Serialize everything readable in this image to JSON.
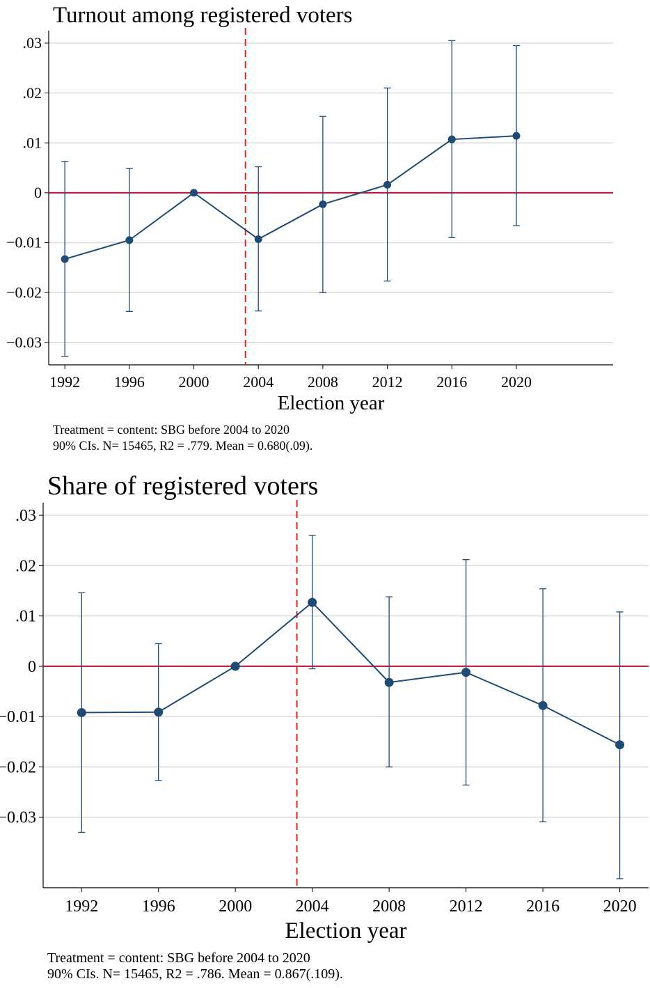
{
  "chart_data": [
    {
      "type": "line",
      "title": "Turnout among registered voters",
      "xlabel": "Election year",
      "ylabel": "",
      "x": [
        1992,
        1996,
        2000,
        2004,
        2008,
        2012,
        2016,
        2020
      ],
      "x_tick_labels": [
        "1992",
        "1996",
        "2000",
        "2004",
        "2008",
        "2012",
        "2016",
        "2020"
      ],
      "y_ticks": [
        -0.03,
        -0.02,
        -0.01,
        0,
        0.01,
        0.02,
        0.03
      ],
      "y_tick_labels": [
        "−0.03",
        "−0.02",
        "−0.01",
        "0",
        ".01",
        ".02",
        ".03"
      ],
      "ylim": [
        -0.0345,
        0.0325
      ],
      "xlim": [
        1991.0,
        2026.0
      ],
      "grid": true,
      "reference_line_y": 0,
      "treatment_line_x": 2003.2,
      "series": [
        {
          "values": [
            -0.0133,
            -0.0095,
            0.0,
            -0.0093,
            -0.0023,
            0.0016,
            0.0107,
            0.0114
          ],
          "ci_low": [
            -0.0328,
            -0.0238,
            0.0,
            -0.0237,
            -0.02,
            -0.0177,
            -0.009,
            -0.0066
          ],
          "ci_high": [
            0.0063,
            0.0049,
            0.0,
            0.0052,
            0.0153,
            0.021,
            0.0305,
            0.0295
          ]
        }
      ],
      "notes": [
        "Treatment = content: SBG before 2004 to 2020",
        "90% CIs. N= 15465, R2 = .779. Mean = 0.680(.09)."
      ],
      "colors": {
        "series": "#1f4a73",
        "zero_line": "#b5123a",
        "treatment_line": "#e8211d",
        "grid": "#d9d9d9"
      }
    },
    {
      "type": "line",
      "title": "Share of registered voters",
      "xlabel": "Election year",
      "ylabel": "",
      "x": [
        1992,
        1996,
        2000,
        2004,
        2008,
        2012,
        2016,
        2020
      ],
      "x_tick_labels": [
        "1992",
        "1996",
        "2000",
        "2004",
        "2008",
        "2012",
        "2016",
        "2020"
      ],
      "y_ticks": [
        -0.03,
        -0.02,
        -0.01,
        0,
        0.01,
        0.02,
        0.03
      ],
      "y_tick_labels": [
        "−0.03",
        "−0.02",
        "−0.01",
        "0",
        ".01",
        ".02",
        ".03"
      ],
      "ylim": [
        -0.044,
        0.0325
      ],
      "xlim": [
        1990.0,
        2021.5
      ],
      "grid": true,
      "reference_line_y": 0,
      "treatment_line_x": 2003.2,
      "series": [
        {
          "values": [
            -0.0092,
            -0.0091,
            0.0,
            0.0127,
            -0.0032,
            -0.0012,
            -0.0078,
            -0.0156
          ],
          "ci_low": [
            -0.033,
            -0.0227,
            0.0,
            -0.0005,
            -0.02,
            -0.0236,
            -0.0309,
            -0.0422
          ],
          "ci_high": [
            0.0146,
            0.0045,
            0.0,
            0.026,
            0.0138,
            0.0212,
            0.0154,
            0.0108
          ]
        }
      ],
      "notes": [
        "Treatment = content: SBG before 2004 to 2020",
        "90% CIs. N= 15465, R2 = .786. Mean = 0.867(.109)."
      ],
      "colors": {
        "series": "#1f4a73",
        "zero_line": "#b5123a",
        "treatment_line": "#e8211d",
        "grid": "#d9d9d9"
      }
    }
  ]
}
